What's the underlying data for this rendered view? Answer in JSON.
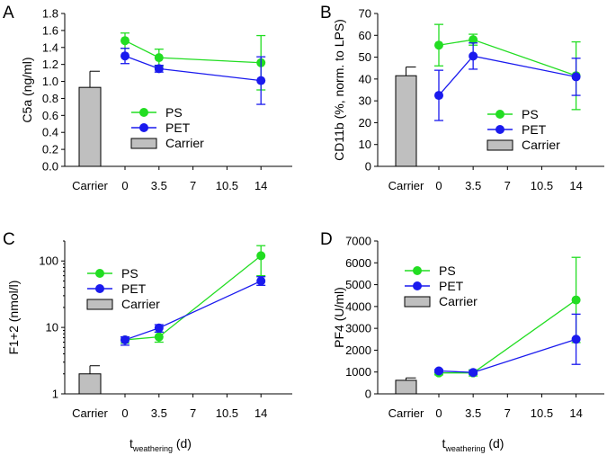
{
  "colors": {
    "ps": "#22dd22",
    "pet": "#1a1aee",
    "carrier": "#bfbfbf",
    "axis": "#000000"
  },
  "legend_labels": {
    "ps": "PS",
    "pet": "PET",
    "carrier": "Carrier"
  },
  "shared_x": {
    "ticks": [
      0,
      3.5,
      7,
      10.5,
      14
    ],
    "tick_labels": [
      "0",
      "3.5",
      "7",
      "10.5",
      "14"
    ],
    "carrier_label": "Carrier",
    "xlabel_base": "t",
    "xlabel_sub": "weathering",
    "xlabel_unit": " (d)"
  },
  "chart_data": [
    {
      "type": "bar+line",
      "panel": "A",
      "ylabel": "C5a (ng/ml)",
      "yscale": "linear",
      "ylim": [
        0,
        1.8
      ],
      "yticks": [
        0,
        0.2,
        0.4,
        0.6,
        0.8,
        1.0,
        1.2,
        1.4,
        1.6,
        1.8
      ],
      "ytick_labels": [
        "0.0",
        "0.2",
        "0.4",
        "0.6",
        "0.8",
        "1.0",
        "1.2",
        "1.4",
        "1.6",
        "1.8"
      ],
      "x": [
        0,
        3.5,
        14
      ],
      "carrier": {
        "value": 0.93,
        "err": 0.19
      },
      "series": [
        {
          "name": "PS",
          "values": [
            1.48,
            1.28,
            1.22
          ],
          "err": [
            0.09,
            0.1,
            0.32
          ]
        },
        {
          "name": "PET",
          "values": [
            1.3,
            1.15,
            1.01
          ],
          "err": [
            0.09,
            0.04,
            0.28
          ]
        }
      ],
      "legend_position": "center"
    },
    {
      "type": "bar+line",
      "panel": "B",
      "ylabel": "CD11b (%, norm. to LPS)",
      "yscale": "linear",
      "ylim": [
        0,
        70
      ],
      "yticks": [
        0,
        10,
        20,
        30,
        40,
        50,
        60,
        70
      ],
      "ytick_labels": [
        "0",
        "10",
        "20",
        "30",
        "40",
        "50",
        "60",
        "70"
      ],
      "x": [
        0,
        3.5,
        14
      ],
      "carrier": {
        "value": 41.5,
        "err": 4
      },
      "series": [
        {
          "name": "PS",
          "values": [
            55.5,
            58,
            41.5
          ],
          "err": [
            9.5,
            2.5,
            15.5
          ]
        },
        {
          "name": "PET",
          "values": [
            32.5,
            50.5,
            41
          ],
          "err": [
            11.5,
            6,
            8.5
          ]
        }
      ],
      "legend_position": "bottom-right"
    },
    {
      "type": "bar+line",
      "panel": "C",
      "ylabel": "F1+2 (nmol/l)",
      "yscale": "log",
      "ylim": [
        1,
        200
      ],
      "yticks": [
        1,
        10,
        100
      ],
      "ytick_labels": [
        "1",
        "10",
        "100"
      ],
      "x": [
        0,
        3.5,
        14
      ],
      "carrier": {
        "value": 2.0,
        "err_hi": 2.65
      },
      "series": [
        {
          "name": "PS",
          "values": [
            6.5,
            7.2,
            120
          ],
          "lo": [
            5.8,
            6.0,
            60
          ],
          "hi": [
            7.2,
            8.5,
            170
          ]
        },
        {
          "name": "PET",
          "values": [
            6.5,
            9.8,
            50
          ],
          "lo": [
            5.4,
            8.5,
            43
          ],
          "hi": [
            7.2,
            11.0,
            58
          ]
        }
      ],
      "legend_position": "top-left"
    },
    {
      "type": "bar+line",
      "panel": "D",
      "ylabel": "PF4 (U/ml)",
      "yscale": "linear",
      "ylim": [
        0,
        7000
      ],
      "yticks": [
        0,
        1000,
        2000,
        3000,
        4000,
        5000,
        6000,
        7000
      ],
      "ytick_labels": [
        "0",
        "1000",
        "2000",
        "3000",
        "4000",
        "5000",
        "6000",
        "7000"
      ],
      "x": [
        0,
        3.5,
        14
      ],
      "carrier": {
        "value": 620,
        "err": 110
      },
      "series": [
        {
          "name": "PS",
          "values": [
            960,
            960,
            4300
          ],
          "err": [
            90,
            140,
            1950
          ]
        },
        {
          "name": "PET",
          "values": [
            1050,
            980,
            2500
          ],
          "err": [
            60,
            80,
            1150
          ]
        }
      ],
      "legend_position": "top-left"
    }
  ]
}
